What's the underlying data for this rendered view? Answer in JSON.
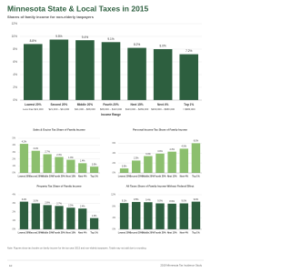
{
  "title": "Minnesota State & Local Taxes in 2015",
  "subtitle": "Shares of family income for non-elderly taxpayers",
  "chart_data": [
    {
      "type": "bar",
      "categories": [
        "Lowest 20%",
        "Second 20%",
        "Middle 20%",
        "Fourth 20%",
        "Next 15%",
        "Next 4%",
        "Top 1%"
      ],
      "income_ranges": [
        "Less than $21,000",
        "$21,000 – $41,000",
        "$41,000 – $68,000",
        "$68,000 – $113,000",
        "$113,000 – $269,000",
        "$269,000 – $680,000",
        "> $680,000"
      ],
      "x_label": "Income Range",
      "values": [
        8.8,
        9.5,
        9.4,
        9.1,
        8.2,
        8.0,
        7.2
      ],
      "value_labels": [
        "8.8%",
        "9.5%",
        "9.4%",
        "9.1%",
        "8.2%",
        "8.0%",
        "7.2%"
      ],
      "color": "#2d5f3f",
      "ylim": [
        0,
        12
      ],
      "yticks": [
        {
          "value": 0,
          "label": "0%"
        },
        {
          "value": 2,
          "label": "2%"
        },
        {
          "value": 4,
          "label": "4%"
        },
        {
          "value": 6,
          "label": "6%"
        },
        {
          "value": 8,
          "label": "8%"
        },
        {
          "value": 10,
          "label": "10%"
        },
        {
          "value": 12,
          "label": "12%"
        }
      ],
      "grid": true
    },
    {
      "type": "bar",
      "title": "Sales & Excise Tax Share of Family Income",
      "categories": [
        "Lowest 20%",
        "Second 20%",
        "Middle 20%",
        "Fourth 20%",
        "Next 15%",
        "Next 4%",
        "Top 1%"
      ],
      "values": [
        4.2,
        3.2,
        2.7,
        2.3,
        1.9,
        1.4,
        0.9
      ],
      "value_labels": [
        "4.2%",
        "3.2%",
        "2.7%",
        "2.3%",
        "1.9%",
        "1.4%",
        "0.9%"
      ],
      "color": "#8cbf6e",
      "ylim": [
        0,
        5
      ],
      "yticks": [
        {
          "value": 0,
          "label": "0%"
        },
        {
          "value": 1,
          "label": "1%"
        },
        {
          "value": 2,
          "label": "2%"
        },
        {
          "value": 3,
          "label": "3%"
        },
        {
          "value": 4,
          "label": "4%"
        },
        {
          "value": 5,
          "label": "5%"
        }
      ],
      "grid": true
    },
    {
      "type": "bar",
      "title": "Personal Income Tax Share of Family Income",
      "categories": [
        "Lowest 20%",
        "Second 20%",
        "Middle 20%",
        "Fourth 20%",
        "Next 15%",
        "Next 4%",
        "Top 1%"
      ],
      "values": [
        0.9,
        2.5,
        3.4,
        3.9,
        4.3,
        4.9,
        6.0
      ],
      "value_labels": [
        "0.9%",
        "2.5%",
        "3.4%",
        "3.9%",
        "4.3%",
        "4.9%",
        "6.0%"
      ],
      "color": "#8cbf6e",
      "ylim": [
        0,
        7
      ],
      "yticks": [
        {
          "value": 0,
          "label": "0%"
        },
        {
          "value": 2,
          "label": "2%"
        },
        {
          "value": 4,
          "label": "4%"
        },
        {
          "value": 6,
          "label": "6%"
        }
      ],
      "grid": true
    },
    {
      "type": "bar",
      "title": "Property Tax Share of Family Income",
      "categories": [
        "Lowest 20%",
        "Second 20%",
        "Middle 20%",
        "Fourth 20%",
        "Next 15%",
        "Next 4%",
        "Top 1%"
      ],
      "values": [
        3.2,
        3.0,
        2.8,
        2.7,
        2.5,
        2.4,
        1.3
      ],
      "value_labels": [
        "3.2%",
        "3.0%",
        "2.8%",
        "2.7%",
        "2.5%",
        "2.4%",
        "1.3%"
      ],
      "color": "#2d5f3f",
      "ylim": [
        0,
        4
      ],
      "yticks": [
        {
          "value": 0,
          "label": "0%"
        },
        {
          "value": 1,
          "label": "1%"
        },
        {
          "value": 2,
          "label": "2%"
        },
        {
          "value": 3,
          "label": "3%"
        },
        {
          "value": 4,
          "label": "4%"
        }
      ],
      "grid": true
    },
    {
      "type": "bar",
      "title": "All Taxes Share of Family Income Without Federal Effect",
      "categories": [
        "Lowest 20%",
        "Second 20%",
        "Middle 20%",
        "Fourth 20%",
        "Next 15%",
        "Next 4%",
        "Top 1%"
      ],
      "values": [
        9.1,
        9.5,
        9.4,
        9.0,
        8.9,
        9.0,
        9.6
      ],
      "value_labels": [
        "9.1%",
        "9.5%",
        "9.4%",
        "9.0%",
        "8.9%",
        "9.0%",
        "9.6%"
      ],
      "color": "#2d5f3f",
      "ylim": [
        0,
        12
      ],
      "yticks": [
        {
          "value": 0,
          "label": "0%"
        },
        {
          "value": 4,
          "label": "4%"
        },
        {
          "value": 8,
          "label": "8%"
        },
        {
          "value": 12,
          "label": "12%"
        }
      ],
      "grid": true
    }
  ],
  "footnote": "Note: Figures show tax burden on family income for the tax year 2015 and non-elderly taxpayers. Totals may not add due to rounding.",
  "footer": {
    "page": "10",
    "source": "2019 Minnesota Tax Incidence Study"
  }
}
